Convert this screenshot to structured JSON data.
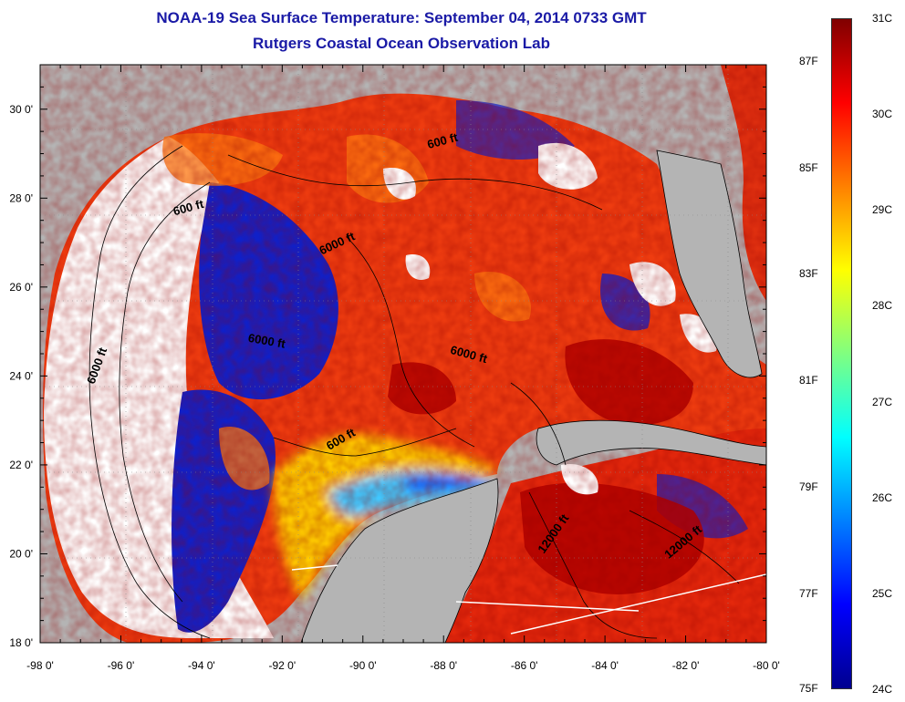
{
  "title": {
    "line1": "NOAA-19 Sea Surface Temperature:  September 04, 2014 0733 GMT",
    "line2": "Rutgers Coastal Ocean Observation Lab"
  },
  "map": {
    "lon_range": [
      -98,
      -80
    ],
    "lat_range": [
      18,
      31
    ],
    "lon_ticks": [
      "-98 0'",
      "-96 0'",
      "-94 0'",
      "-92 0'",
      "-90 0'",
      "-88 0'",
      "-86 0'",
      "-84 0'",
      "-82 0'",
      "-80 0'"
    ],
    "lat_ticks": [
      "18 0'",
      "20 0'",
      "22 0'",
      "24 0'",
      "26 0'",
      "28 0'",
      "30 0'"
    ],
    "contour_labels": [
      {
        "text": "600 ft",
        "lon": -94.3,
        "lat": 27.7,
        "angle": -15
      },
      {
        "text": "6000 ft",
        "lon": -90.6,
        "lat": 26.9,
        "angle": -25
      },
      {
        "text": "600 ft",
        "lon": -88.0,
        "lat": 29.2,
        "angle": -15
      },
      {
        "text": "6000 ft",
        "lon": -96.5,
        "lat": 24.2,
        "angle": -70
      },
      {
        "text": "6000 ft",
        "lon": -92.4,
        "lat": 24.7,
        "angle": 10
      },
      {
        "text": "6000 ft",
        "lon": -87.4,
        "lat": 24.4,
        "angle": 15
      },
      {
        "text": "600 ft",
        "lon": -90.5,
        "lat": 22.5,
        "angle": -30
      },
      {
        "text": "12000 ft",
        "lon": -85.2,
        "lat": 20.4,
        "angle": -55
      },
      {
        "text": "12000 ft",
        "lon": -82.0,
        "lat": 20.2,
        "angle": -40
      }
    ],
    "colors": {
      "land": "#b4b4b4",
      "no_data": "#ffffff"
    }
  },
  "colorbar": {
    "stops": [
      "#00008f",
      "#0000ff",
      "#0080ff",
      "#00ffff",
      "#80ff80",
      "#ffff00",
      "#ff8000",
      "#ff0000",
      "#800000"
    ],
    "fahrenheit_labels": [
      "87F",
      "85F",
      "83F",
      "81F",
      "79F",
      "77F",
      "75F"
    ],
    "celsius_labels": [
      "31C",
      "30C",
      "29C",
      "28C",
      "27C",
      "26C",
      "25C",
      "24C"
    ],
    "f_values": [
      87,
      85,
      83,
      81,
      79,
      77,
      75
    ],
    "c_values": [
      31,
      30,
      29,
      28,
      27,
      26,
      25,
      24
    ],
    "c_range": [
      24,
      31
    ]
  }
}
